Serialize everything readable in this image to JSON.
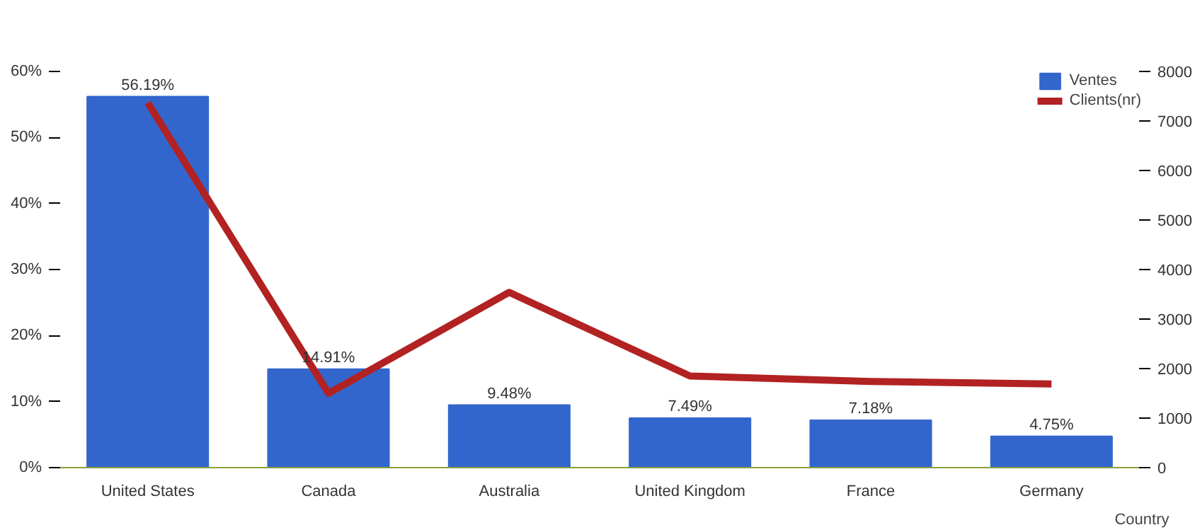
{
  "chart_data": {
    "type": "bar",
    "xlabel": "Country",
    "categories": [
      "United States",
      "Canada",
      "Australia",
      "United Kingdom",
      "France",
      "Germany"
    ],
    "ylim": [
      0,
      60
    ],
    "yticks": [
      {
        "value": 0,
        "label": "0%"
      },
      {
        "value": 10,
        "label": "10%"
      },
      {
        "value": 20,
        "label": "20%"
      },
      {
        "value": 30,
        "label": "30%"
      },
      {
        "value": 40,
        "label": "40%"
      },
      {
        "value": 50,
        "label": "50%"
      },
      {
        "value": 60,
        "label": "60%"
      }
    ],
    "y2lim": [
      0,
      8000
    ],
    "y2ticks": [
      0,
      1000,
      2000,
      3000,
      4000,
      5000,
      6000,
      7000,
      8000
    ],
    "series": [
      {
        "name": "Ventes",
        "color": "#3366cc",
        "values": [
          56.19,
          14.91,
          9.48,
          7.49,
          7.18,
          4.75
        ],
        "value_labels": [
          "56.19%",
          "14.91%",
          "9.48%",
          "7.49%",
          "7.18%",
          "4.75%"
        ]
      },
      {
        "name": "Clients(nr)",
        "type": "line",
        "axis": "y2",
        "color": "#b22222",
        "values": [
          7370,
          1500,
          3540,
          1850,
          1740,
          1690
        ]
      }
    ],
    "legend": "top right",
    "grid": false
  }
}
